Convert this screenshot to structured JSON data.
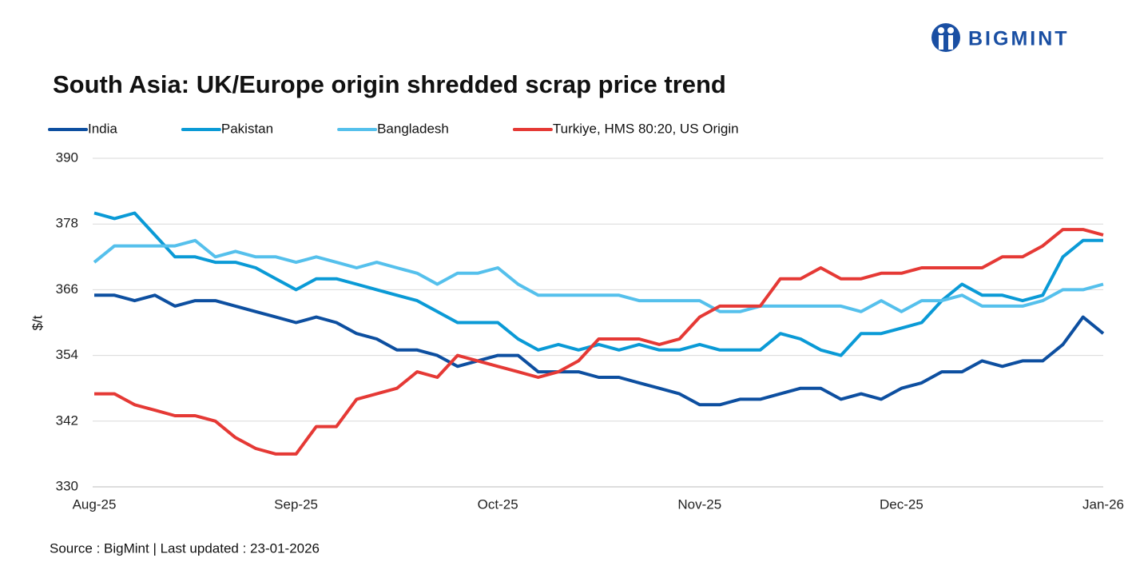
{
  "logo": "BIGMINT",
  "chart_data": {
    "type": "line",
    "title": "South Asia: UK/Europe origin shredded scrap price trend",
    "y_label": "$/t",
    "source": "Source : BigMint | Last updated : 23-01-2026",
    "categories": [
      "Aug-25",
      null,
      null,
      null,
      null,
      null,
      null,
      null,
      null,
      null,
      "Sep-25",
      null,
      null,
      null,
      null,
      null,
      null,
      null,
      null,
      null,
      "Oct-25",
      null,
      null,
      null,
      null,
      null,
      null,
      null,
      null,
      null,
      "Nov-25",
      null,
      null,
      null,
      null,
      null,
      null,
      null,
      null,
      null,
      "Dec-25",
      null,
      null,
      null,
      null,
      null,
      null,
      null,
      null,
      null,
      "Jan-26"
    ],
    "series": [
      {
        "name": "India",
        "color": "#0d4fa0",
        "values": [
          365,
          365,
          364,
          365,
          363,
          364,
          364,
          363,
          362,
          361,
          360,
          361,
          360,
          358,
          357,
          355,
          355,
          354,
          352,
          353,
          354,
          354,
          351,
          351,
          351,
          350,
          350,
          349,
          348,
          347,
          345,
          345,
          346,
          346,
          347,
          348,
          348,
          346,
          347,
          346,
          348,
          349,
          351,
          351,
          353,
          352,
          353,
          353,
          356,
          361,
          358
        ]
      },
      {
        "name": "Pakistan",
        "color": "#0a9ad6",
        "values": [
          380,
          379,
          380,
          376,
          372,
          372,
          371,
          371,
          370,
          368,
          366,
          368,
          368,
          367,
          366,
          365,
          364,
          362,
          360,
          360,
          360,
          357,
          355,
          356,
          355,
          356,
          355,
          356,
          355,
          355,
          356,
          355,
          355,
          355,
          358,
          357,
          355,
          354,
          358,
          358,
          359,
          360,
          364,
          367,
          365,
          365,
          364,
          365,
          372,
          375,
          375
        ]
      },
      {
        "name": "Bangladesh",
        "color": "#55c0ec",
        "values": [
          371,
          374,
          374,
          374,
          374,
          375,
          372,
          373,
          372,
          372,
          371,
          372,
          371,
          370,
          371,
          370,
          369,
          367,
          369,
          369,
          370,
          367,
          365,
          365,
          365,
          365,
          365,
          364,
          364,
          364,
          364,
          362,
          362,
          363,
          363,
          363,
          363,
          363,
          362,
          364,
          362,
          364,
          364,
          365,
          363,
          363,
          363,
          364,
          366,
          366,
          367
        ]
      },
      {
        "name": "Turkiye, HMS 80:20, US Origin",
        "color": "#e53935",
        "values": [
          347,
          347,
          345,
          344,
          343,
          343,
          342,
          339,
          337,
          336,
          336,
          341,
          341,
          346,
          347,
          348,
          351,
          350,
          354,
          353,
          352,
          351,
          350,
          351,
          353,
          357,
          357,
          357,
          356,
          357,
          361,
          363,
          363,
          363,
          368,
          368,
          370,
          368,
          368,
          369,
          369,
          370,
          370,
          370,
          370,
          372,
          372,
          374,
          377,
          377,
          376
        ]
      }
    ],
    "ylim": [
      330,
      390
    ],
    "yticks": [
      330,
      342,
      354,
      366,
      378,
      390
    ],
    "grid": true
  }
}
